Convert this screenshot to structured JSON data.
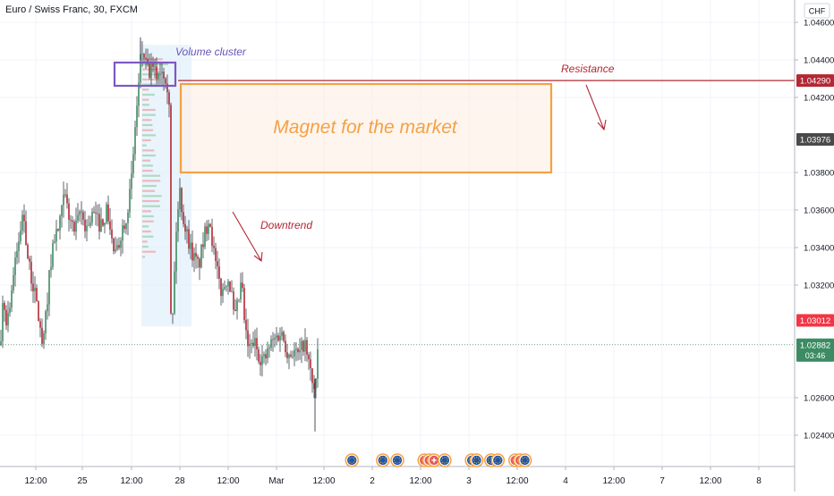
{
  "chart_data": {
    "type": "candlestick",
    "title": "Euro / Swiss Franc, 30, FXCM",
    "currency": "CHF",
    "ylim": [
      1.0225,
      1.047
    ],
    "y_ticks": [
      "1.04600",
      "1.04400",
      "1.04200",
      "1.03800",
      "1.03600",
      "1.03400",
      "1.03200",
      "1.02600",
      "1.02400"
    ],
    "x_ticks": [
      "12:00",
      "25",
      "12:00",
      "28",
      "12:00",
      "Mar",
      "12:00",
      "2",
      "12:00",
      "3",
      "12:00",
      "4",
      "12:00",
      "7",
      "12:00",
      "8"
    ],
    "price_labels": [
      {
        "value": 1.0429,
        "text": "1.04290",
        "color": "#b22833"
      },
      {
        "value": 1.03976,
        "text": "1.03976",
        "color": "#4a4a4a"
      },
      {
        "value": 1.03012,
        "text": "1.03012",
        "color": "#f23645"
      },
      {
        "value": 1.02882,
        "text": "1.02882",
        "sub": "03:46",
        "color": "#3d8b62"
      }
    ],
    "annotations": {
      "volume_cluster": "Volume cluster",
      "resistance": "Resistance",
      "magnet": "Magnet for the market",
      "downtrend": "Downtrend"
    },
    "events": [
      {
        "t": 24.28,
        "kind": "eu"
      },
      {
        "t": 24.6,
        "kind": "eu"
      },
      {
        "t": 24.75,
        "kind": "eu"
      },
      {
        "t": 25.03,
        "kind": "plus"
      },
      {
        "t": 25.08,
        "kind": "plus"
      },
      {
        "t": 25.13,
        "kind": "plus"
      },
      {
        "t": 25.24,
        "kind": "eu"
      },
      {
        "t": 25.52,
        "kind": "eu"
      },
      {
        "t": 25.57,
        "kind": "eu"
      },
      {
        "t": 25.72,
        "kind": "eu"
      },
      {
        "t": 25.79,
        "kind": "eu"
      },
      {
        "t": 25.97,
        "kind": "plus"
      },
      {
        "t": 26.02,
        "kind": "plus"
      },
      {
        "t": 26.07,
        "kind": "eu"
      }
    ],
    "colors": {
      "up": "#3d8b62",
      "down": "#b22833",
      "cluster": "#7e57c2",
      "zone": "#f5a142",
      "resistance": "#b22833",
      "downtrend": "#b22833"
    }
  }
}
